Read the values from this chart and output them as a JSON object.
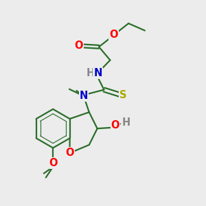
{
  "bg_color": "#ececec",
  "bond_color": "#2a6e2a",
  "bond_width": 1.6,
  "atom_colors": {
    "O": "#ff0000",
    "N": "#0000cc",
    "S": "#aaaa00",
    "H": "#888888",
    "C": "#2a6e2a"
  },
  "font_size": 10.5,
  "font_size_small": 9.5,
  "inner_ring_ratio": 0.76
}
